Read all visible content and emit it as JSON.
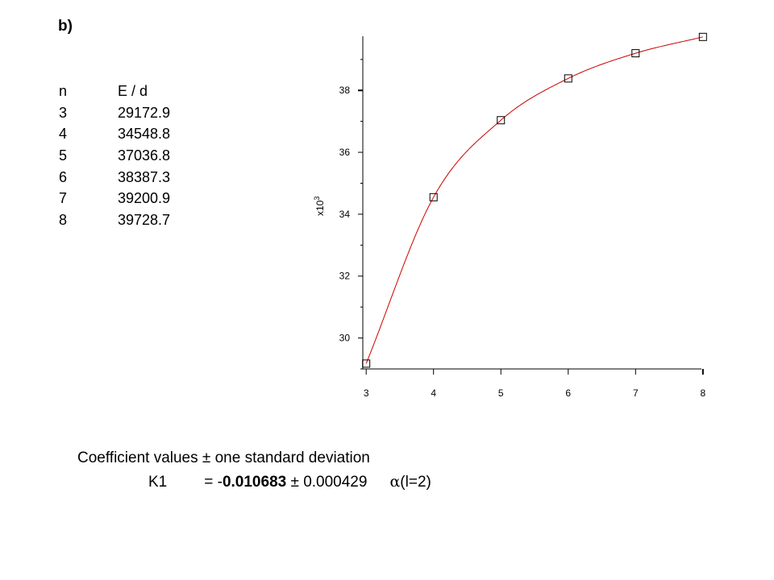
{
  "panel_label": "b)",
  "table": {
    "headers": [
      "n",
      "E / d"
    ],
    "rows": [
      [
        "3",
        "29172.9"
      ],
      [
        "4",
        "34548.8"
      ],
      [
        "5",
        "37036.8"
      ],
      [
        "6",
        "38387.3"
      ],
      [
        "7",
        "39200.9"
      ],
      [
        "8",
        "39728.7"
      ]
    ]
  },
  "chart_data": {
    "type": "scatter",
    "title": "",
    "xlabel": "",
    "ylabel": "",
    "y_multiplier_label": "x10",
    "y_multiplier_exponent": "3",
    "xlim": [
      2.95,
      8.05
    ],
    "ylim": [
      29.0,
      39.75
    ],
    "x_ticks": [
      "3",
      "4",
      "5",
      "6",
      "7",
      "8"
    ],
    "y_ticks": [
      "30",
      "32",
      "34",
      "36",
      "38"
    ],
    "x": [
      3,
      4,
      5,
      6,
      7,
      8
    ],
    "y": [
      29.1729,
      34.5488,
      37.0368,
      38.3873,
      39.2009,
      39.7287
    ],
    "marker": "open-square",
    "fit_color": "#cc0000",
    "grid": false,
    "legend": "none"
  },
  "coefficients": {
    "header": "Coefficient values ± one standard deviation",
    "name": "K1",
    "equals": "= -",
    "value": "0.010683",
    "pm": "± 0.000429",
    "alpha": "α",
    "tag": "(l=2)"
  }
}
